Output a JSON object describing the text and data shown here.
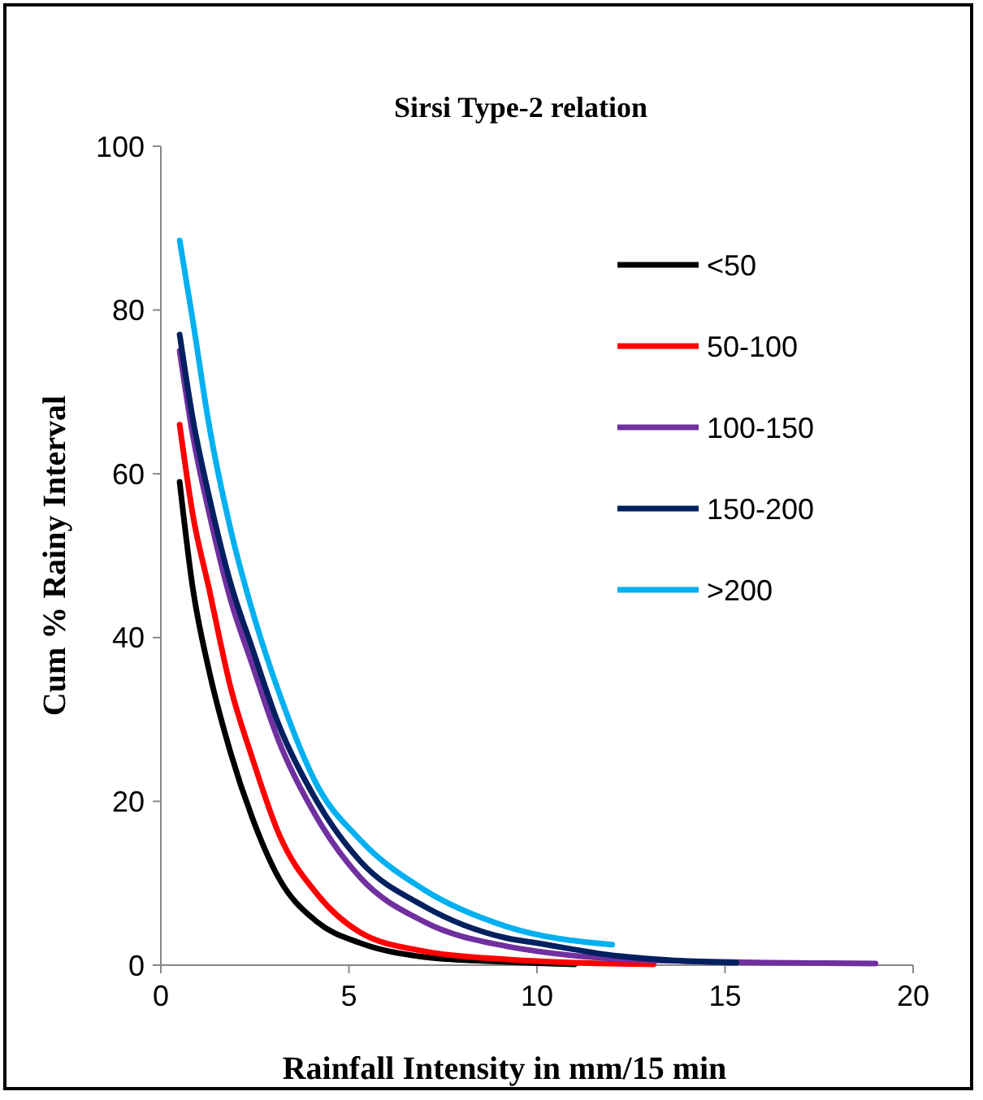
{
  "chart_data": {
    "type": "line",
    "title": "Sirsi Type-2 relation",
    "xlabel": "Rainfall Intensity in mm/15 min",
    "ylabel": "Cum % Rainy Interval",
    "xlim": [
      0,
      20
    ],
    "xticks": [
      0,
      5,
      10,
      15,
      20
    ],
    "ylim": [
      0,
      100
    ],
    "yticks": [
      0,
      20,
      40,
      60,
      80,
      100
    ],
    "grid": false,
    "legend": "top right",
    "marker": "none",
    "line_style": "solid",
    "series": [
      {
        "name": "<50",
        "color": "#000000",
        "x": [
          0.5,
          0.85,
          1.28,
          1.85,
          2.43,
          3.14,
          4.15,
          5.3,
          7,
          9.2,
          11
        ],
        "values": [
          59,
          46,
          36,
          26,
          18,
          10.6,
          5.3,
          2.7,
          1,
          0.4,
          0.1
        ]
      },
      {
        "name": "50-100",
        "color": "#ff0000",
        "x": [
          0.5,
          0.85,
          1.28,
          1.85,
          2.43,
          3.14,
          4.15,
          5.3,
          7,
          9.2,
          11,
          13.1
        ],
        "values": [
          66,
          55,
          46,
          34,
          25.3,
          16,
          8.7,
          4,
          1.7,
          0.7,
          0.3,
          0.1
        ]
      },
      {
        "name": "100-150",
        "color": "#7030a0",
        "x": [
          0.5,
          0.85,
          1.28,
          1.85,
          2.43,
          3.14,
          4.15,
          5.3,
          7,
          9.2,
          10,
          12,
          15,
          19
        ],
        "values": [
          75,
          64.7,
          55.3,
          44.7,
          36.7,
          27.3,
          18,
          10.7,
          5.3,
          2.3,
          1.7,
          0.8,
          0.4,
          0.2
        ]
      },
      {
        "name": "150-200",
        "color": "#002060",
        "x": [
          0.5,
          0.85,
          1.28,
          1.85,
          2.43,
          3.14,
          4.15,
          5.3,
          7,
          9.2,
          10,
          12,
          15.3
        ],
        "values": [
          77,
          66.7,
          57.3,
          46.7,
          38.7,
          29.3,
          20,
          12.7,
          7.2,
          3.3,
          2.7,
          1.2,
          0.3
        ]
      },
      {
        "name": ">200",
        "color": "#00b0f0",
        "x": [
          0.5,
          0.85,
          1.28,
          1.85,
          2.43,
          3.14,
          4.15,
          5.3,
          7,
          9.2,
          12
        ],
        "values": [
          88.5,
          78.7,
          66,
          53.3,
          43.3,
          33.3,
          22,
          15.3,
          9.2,
          4.7,
          2.5
        ]
      }
    ]
  }
}
